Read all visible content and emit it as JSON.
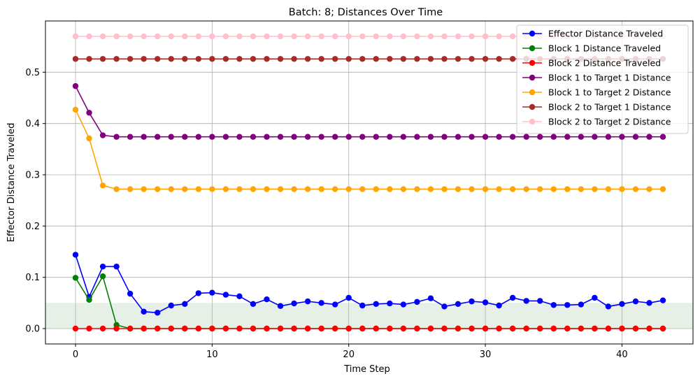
{
  "chart_data": {
    "type": "line",
    "title": "Batch: 8; Distances Over Time",
    "xlabel": "Time Step",
    "ylabel": "Effector Distance Traveled",
    "xlim": [
      -2.2,
      45.2
    ],
    "ylim": [
      -0.03,
      0.6
    ],
    "xticks": [
      0,
      10,
      20,
      30,
      40
    ],
    "yticks": [
      0.0,
      0.1,
      0.2,
      0.3,
      0.4,
      0.5
    ],
    "ytick_labels": [
      "0.0",
      "0.1",
      "0.2",
      "0.3",
      "0.4",
      "0.5"
    ],
    "grid": true,
    "legend_position": "top-right",
    "shaded_band": {
      "y0": 0.0,
      "y1": 0.05,
      "color": "#e6f0e6"
    },
    "x": [
      0,
      1,
      2,
      3,
      4,
      5,
      6,
      7,
      8,
      9,
      10,
      11,
      12,
      13,
      14,
      15,
      16,
      17,
      18,
      19,
      20,
      21,
      22,
      23,
      24,
      25,
      26,
      27,
      28,
      29,
      30,
      31,
      32,
      33,
      34,
      35,
      36,
      37,
      38,
      39,
      40,
      41,
      42,
      43
    ],
    "series": [
      {
        "name": "Effector Distance Traveled",
        "color": "#0000ff",
        "values": [
          0.144,
          0.062,
          0.121,
          0.121,
          0.068,
          0.033,
          0.031,
          0.045,
          0.048,
          0.069,
          0.07,
          0.066,
          0.063,
          0.048,
          0.057,
          0.044,
          0.049,
          0.053,
          0.05,
          0.047,
          0.06,
          0.045,
          0.048,
          0.049,
          0.047,
          0.052,
          0.059,
          0.043,
          0.048,
          0.053,
          0.051,
          0.045,
          0.06,
          0.054,
          0.054,
          0.046,
          0.046,
          0.047,
          0.06,
          0.043,
          0.048,
          0.053,
          0.05,
          0.055
        ]
      },
      {
        "name": "Block 1 Distance Traveled",
        "color": "#008000",
        "values": [
          0.099,
          0.056,
          0.102,
          0.007,
          0.0,
          0.0,
          0.0,
          0.0,
          0.0,
          0.0,
          0.0,
          0.0,
          0.0,
          0.0,
          0.0,
          0.0,
          0.0,
          0.0,
          0.0,
          0.0,
          0.0,
          0.0,
          0.0,
          0.0,
          0.0,
          0.0,
          0.0,
          0.0,
          0.0,
          0.0,
          0.0,
          0.0,
          0.0,
          0.0,
          0.0,
          0.0,
          0.0,
          0.0,
          0.0,
          0.0,
          0.0,
          0.0,
          0.0,
          0.0
        ]
      },
      {
        "name": "Block 2 Distance Traveled",
        "color": "#ff0000",
        "values": [
          0.0,
          0.0,
          0.0,
          0.0,
          0.0,
          0.0,
          0.0,
          0.0,
          0.0,
          0.0,
          0.0,
          0.0,
          0.0,
          0.0,
          0.0,
          0.0,
          0.0,
          0.0,
          0.0,
          0.0,
          0.0,
          0.0,
          0.0,
          0.0,
          0.0,
          0.0,
          0.0,
          0.0,
          0.0,
          0.0,
          0.0,
          0.0,
          0.0,
          0.0,
          0.0,
          0.0,
          0.0,
          0.0,
          0.0,
          0.0,
          0.0,
          0.0,
          0.0,
          0.0
        ]
      },
      {
        "name": "Block 1 to Target 1 Distance",
        "color": "#800080",
        "values": [
          0.473,
          0.421,
          0.377,
          0.374,
          0.374,
          0.374,
          0.374,
          0.374,
          0.374,
          0.374,
          0.374,
          0.374,
          0.374,
          0.374,
          0.374,
          0.374,
          0.374,
          0.374,
          0.374,
          0.374,
          0.374,
          0.374,
          0.374,
          0.374,
          0.374,
          0.374,
          0.374,
          0.374,
          0.374,
          0.374,
          0.374,
          0.374,
          0.374,
          0.374,
          0.374,
          0.374,
          0.374,
          0.374,
          0.374,
          0.374,
          0.374,
          0.374,
          0.374,
          0.374
        ]
      },
      {
        "name": "Block 1 to Target 2 Distance",
        "color": "#ffa500",
        "values": [
          0.427,
          0.371,
          0.279,
          0.272,
          0.272,
          0.272,
          0.272,
          0.272,
          0.272,
          0.272,
          0.272,
          0.272,
          0.272,
          0.272,
          0.272,
          0.272,
          0.272,
          0.272,
          0.272,
          0.272,
          0.272,
          0.272,
          0.272,
          0.272,
          0.272,
          0.272,
          0.272,
          0.272,
          0.272,
          0.272,
          0.272,
          0.272,
          0.272,
          0.272,
          0.272,
          0.272,
          0.272,
          0.272,
          0.272,
          0.272,
          0.272,
          0.272,
          0.272,
          0.272
        ]
      },
      {
        "name": "Block 2 to Target 1 Distance",
        "color": "#a52a2a",
        "values": [
          0.526,
          0.526,
          0.526,
          0.526,
          0.526,
          0.526,
          0.526,
          0.526,
          0.526,
          0.526,
          0.526,
          0.526,
          0.526,
          0.526,
          0.526,
          0.526,
          0.526,
          0.526,
          0.526,
          0.526,
          0.526,
          0.526,
          0.526,
          0.526,
          0.526,
          0.526,
          0.526,
          0.526,
          0.526,
          0.526,
          0.526,
          0.526,
          0.526,
          0.526,
          0.526,
          0.526,
          0.526,
          0.526,
          0.526,
          0.526,
          0.526,
          0.526,
          0.526,
          0.526
        ]
      },
      {
        "name": "Block 2 to Target 2 Distance",
        "color": "#ffc0cb",
        "values": [
          0.57,
          0.57,
          0.57,
          0.57,
          0.57,
          0.57,
          0.57,
          0.57,
          0.57,
          0.57,
          0.57,
          0.57,
          0.57,
          0.57,
          0.57,
          0.57,
          0.57,
          0.57,
          0.57,
          0.57,
          0.57,
          0.57,
          0.57,
          0.57,
          0.57,
          0.57,
          0.57,
          0.57,
          0.57,
          0.57,
          0.57,
          0.57,
          0.57,
          0.57,
          0.57,
          0.57,
          0.57,
          0.57,
          0.57,
          0.57,
          0.57,
          0.57,
          0.57,
          0.57
        ]
      }
    ]
  }
}
